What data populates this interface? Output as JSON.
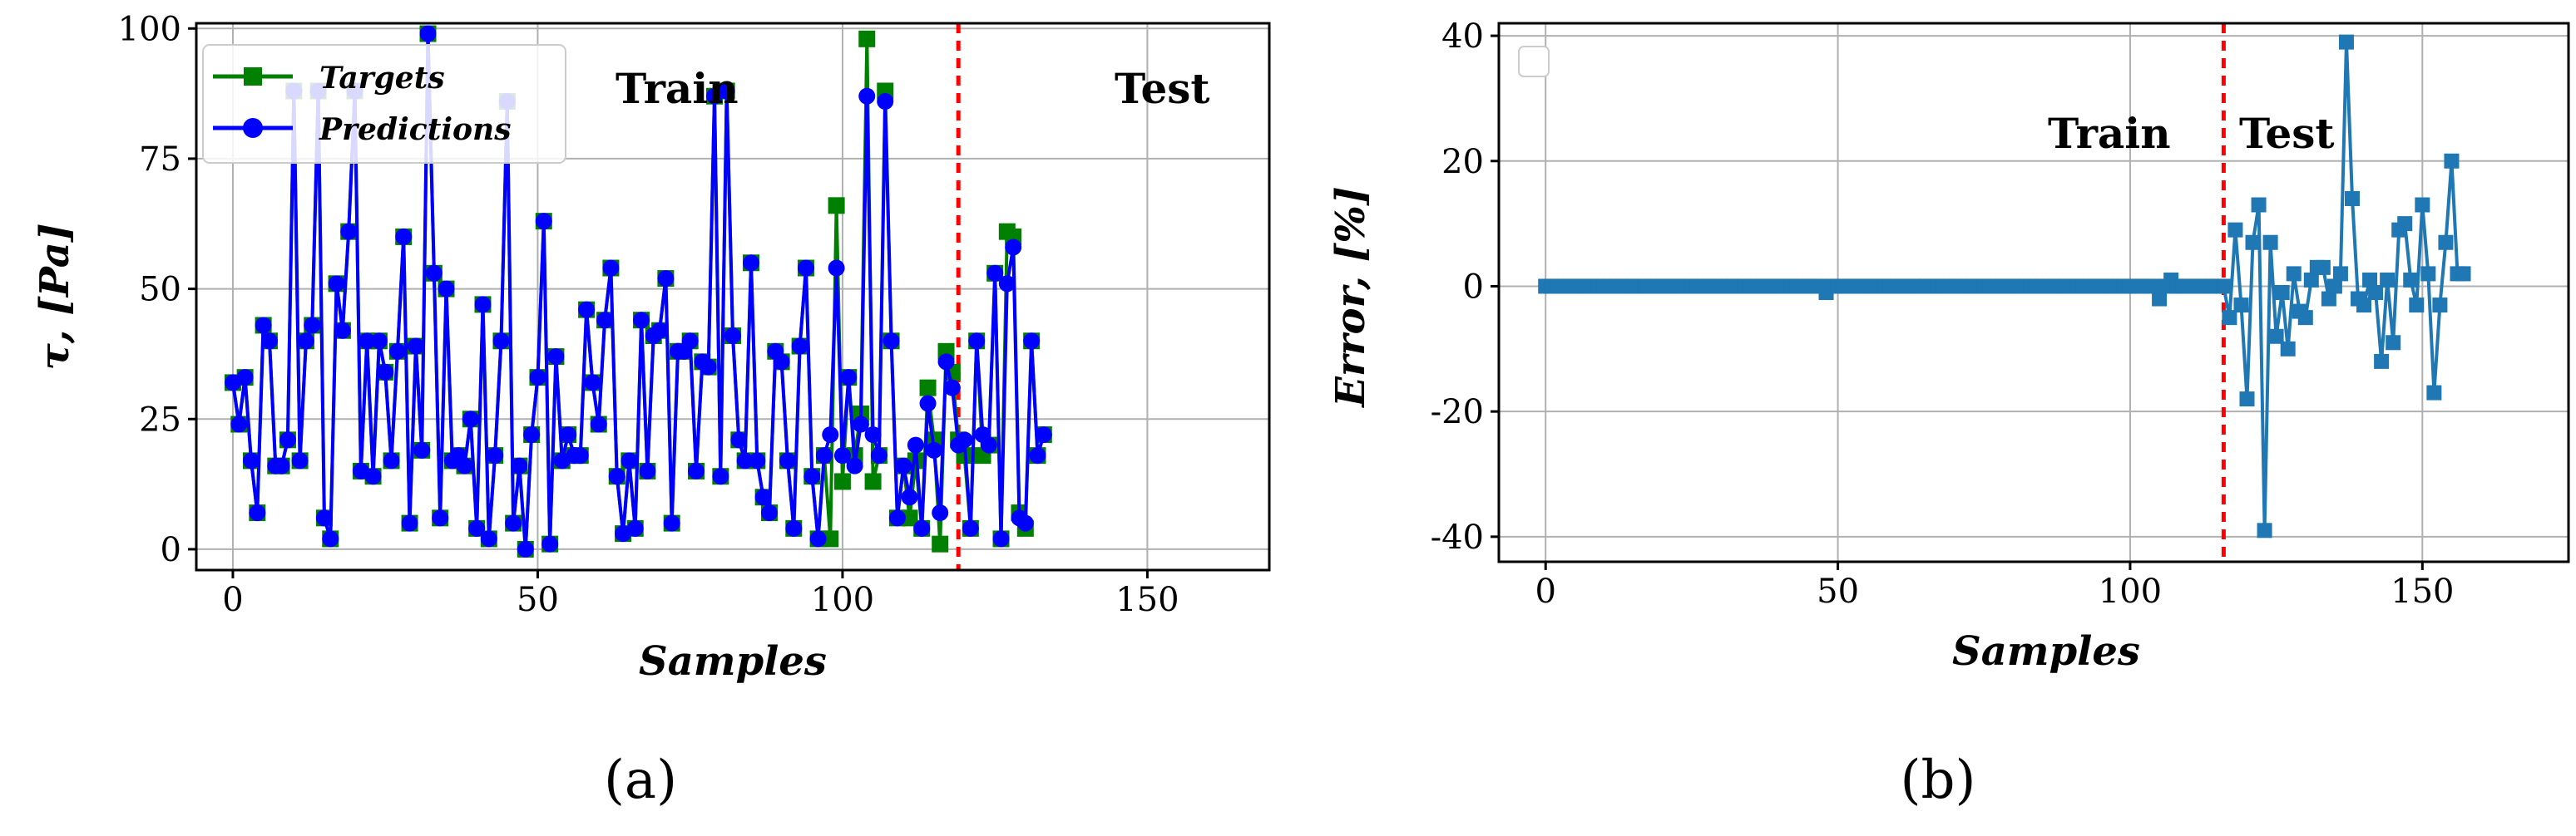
{
  "chart_data": [
    {
      "id": "a",
      "type": "line",
      "caption": "(a)",
      "xlabel": "Samples",
      "ylabel": "τ, [Pa]",
      "xlim": [
        -6,
        170
      ],
      "ylim": [
        -4,
        101
      ],
      "xticks": [
        0,
        50,
        100,
        150
      ],
      "yticks": [
        0,
        25,
        50,
        75,
        100
      ],
      "grid": true,
      "legend_position": "top-left",
      "split_x": 119,
      "regions": [
        "Train",
        "Test"
      ],
      "series": [
        {
          "name": "Targets",
          "color": "#008000",
          "marker": "square",
          "values": [
            32,
            24,
            33,
            17,
            7,
            43,
            40,
            16,
            16,
            21,
            88,
            17,
            40,
            43,
            88,
            6,
            2,
            51,
            42,
            61,
            88,
            15,
            40,
            14,
            40,
            34,
            17,
            38,
            60,
            5,
            39,
            19,
            99,
            53,
            6,
            50,
            17,
            18,
            16,
            25,
            4,
            47,
            2,
            18,
            40,
            86,
            5,
            16,
            0,
            22,
            33,
            63,
            1,
            37,
            17,
            22,
            18,
            18,
            46,
            32,
            24,
            44,
            54,
            14,
            3,
            17,
            4,
            44,
            15,
            41,
            42,
            52,
            5,
            38,
            38,
            40,
            15,
            36,
            35,
            87,
            14,
            88,
            41,
            21,
            17,
            55,
            17,
            10,
            7,
            38,
            36,
            17,
            4,
            39,
            54,
            14,
            2,
            18,
            2,
            66,
            13,
            33,
            18,
            26,
            98,
            13,
            18,
            88,
            40,
            6,
            16,
            6,
            17,
            4,
            31,
            21,
            1,
            38,
            34,
            21,
            18,
            4,
            40,
            18,
            20,
            53,
            2,
            61,
            60,
            7,
            4,
            40,
            18,
            22
          ],
          "x_test_start": 0
        },
        {
          "name": "Predictions",
          "color": "#0000ff",
          "marker": "circle",
          "values": [
            32,
            24,
            33,
            17,
            7,
            43,
            40,
            16,
            16,
            21,
            88,
            17,
            40,
            43,
            88,
            6,
            2,
            51,
            42,
            61,
            88,
            15,
            40,
            14,
            40,
            34,
            17,
            38,
            60,
            5,
            39,
            19,
            99,
            53,
            6,
            50,
            17,
            18,
            16,
            25,
            4,
            47,
            2,
            18,
            40,
            86,
            5,
            16,
            0,
            22,
            33,
            63,
            1,
            37,
            17,
            22,
            18,
            18,
            46,
            32,
            24,
            44,
            54,
            14,
            3,
            17,
            4,
            44,
            15,
            41,
            42,
            52,
            5,
            38,
            38,
            40,
            15,
            36,
            35,
            87,
            14,
            88,
            41,
            21,
            17,
            55,
            17,
            10,
            7,
            38,
            36,
            17,
            4,
            39,
            54,
            14,
            2,
            18,
            22,
            54,
            18,
            33,
            16,
            24,
            87,
            22,
            18,
            86,
            40,
            6,
            16,
            10,
            20,
            4,
            28,
            19,
            7,
            36,
            31,
            20,
            21,
            4,
            40,
            22,
            20,
            53,
            2,
            51,
            58,
            6,
            5,
            40,
            18,
            22
          ]
        }
      ]
    },
    {
      "id": "b",
      "type": "line",
      "caption": "(b)",
      "xlabel": "Samples",
      "ylabel": "Error, [%]",
      "xlim": [
        -8,
        175
      ],
      "ylim": [
        -44,
        42
      ],
      "xticks": [
        0,
        50,
        100,
        150
      ],
      "yticks": [
        -40,
        -20,
        0,
        20,
        40
      ],
      "grid": true,
      "split_x": 116,
      "regions": [
        "Train",
        "Test"
      ],
      "series": [
        {
          "name": "",
          "color": "#1f77b4",
          "marker": "square",
          "values": [
            0,
            0,
            0,
            0,
            0,
            0,
            0,
            0,
            0,
            0,
            0,
            0,
            0,
            0,
            0,
            0,
            0,
            0,
            0,
            0,
            0,
            0,
            0,
            0,
            0,
            0,
            0,
            0,
            0,
            0,
            0,
            0,
            0,
            0,
            0,
            0,
            0,
            0,
            0,
            0,
            0,
            0,
            0,
            0,
            0,
            0,
            0,
            0,
            -1,
            0,
            0,
            0,
            0,
            0,
            0,
            0,
            0,
            0,
            0,
            0,
            0,
            0,
            0,
            0,
            0,
            0,
            0,
            0,
            0,
            0,
            0,
            0,
            0,
            0,
            0,
            0,
            0,
            0,
            0,
            0,
            0,
            0,
            0,
            0,
            0,
            0,
            0,
            0,
            0,
            0,
            0,
            0,
            0,
            0,
            0,
            0,
            0,
            0,
            0,
            0,
            0,
            0,
            0,
            0,
            0,
            -2,
            0,
            1,
            0,
            0,
            0,
            0,
            0,
            0,
            0,
            0,
            0,
            -5,
            9,
            -3,
            -18,
            7,
            13,
            -39,
            7,
            -8,
            -1,
            -10,
            2,
            -4,
            -5,
            1,
            3,
            3,
            -2,
            0,
            2,
            39,
            14,
            -2,
            -3,
            1,
            -1,
            -12,
            1,
            -9,
            9,
            10,
            1,
            -3,
            13,
            2,
            -17,
            -3,
            7,
            20,
            2,
            2
          ]
        }
      ]
    }
  ]
}
